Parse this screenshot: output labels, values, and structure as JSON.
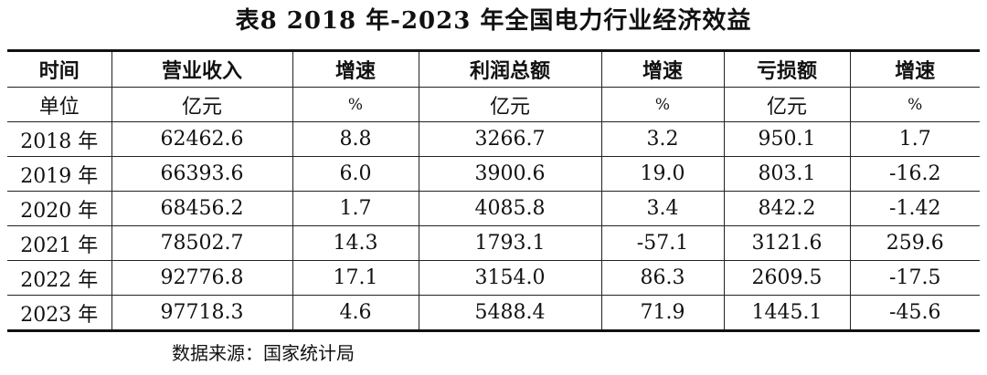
{
  "title": "表8 2018 年-2023 年全国电力行业经济效益",
  "headers": [
    "时间",
    "营业收入",
    "增速",
    "利润总额",
    "增速",
    "亏损额",
    "增速"
  ],
  "units": [
    "单位",
    "亿元",
    "%",
    "亿元",
    "%",
    "亿元",
    "%"
  ],
  "rows": [
    [
      "2018 年",
      "62462.6",
      "8.8",
      "3266.7",
      "3.2",
      "950.1",
      "1.7"
    ],
    [
      "2019 年",
      "66393.6",
      "6.0",
      "3900.6",
      "19.0",
      "803.1",
      "-16.2"
    ],
    [
      "2020 年",
      "68456.2",
      "1.7",
      "4085.8",
      "3.4",
      "842.2",
      "-1.42"
    ],
    [
      "2021 年",
      "78502.7",
      "14.3",
      "1793.1",
      "-57.1",
      "3121.6",
      "259.6"
    ],
    [
      "2022 年",
      "92776.8",
      "17.1",
      "3154.0",
      "86.3",
      "2609.5",
      "-17.5"
    ],
    [
      "2023 年",
      "97718.3",
      "4.6",
      "5488.4",
      "71.9",
      "1445.1",
      "-45.6"
    ]
  ],
  "source": "数据来源：国家统计局"
}
